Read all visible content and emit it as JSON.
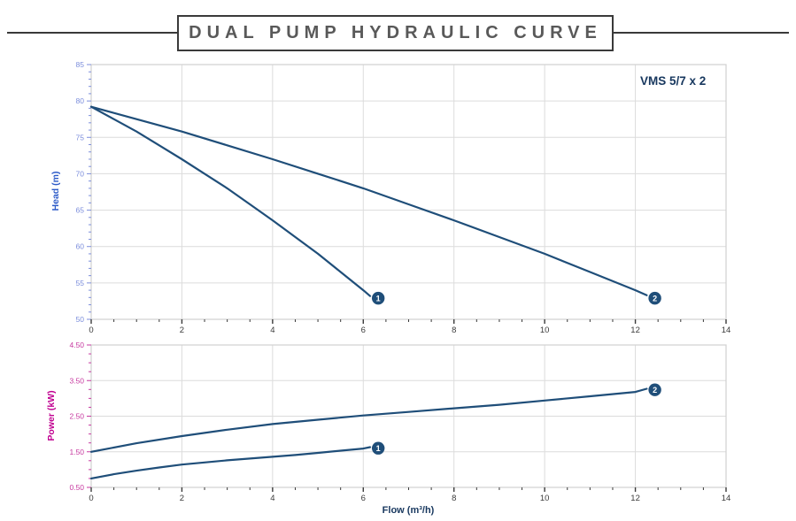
{
  "title": {
    "text": "DUAL PUMP HYDRAULIC CURVE"
  },
  "model_label": "VMS 5/7 x 2",
  "colors": {
    "curve": "#1f4e79",
    "badge": "#1f4e79",
    "badge_text": "#ffffff",
    "grid": "#dcdcdc",
    "plot_border": "#d0d0d0",
    "head_axis_title": "#2d5bc8",
    "head_tick": "#7c8edc",
    "power_axis_title": "#c00090",
    "power_tick": "#c73aa0",
    "x_tick": "#3a3a3a",
    "flow_axis_title": "#17375e",
    "model_label": "#17375e",
    "title_text": "#595959",
    "title_border": "#3a3a3a"
  },
  "chart_data": [
    {
      "type": "line",
      "title": "",
      "xlabel": "",
      "ylabel": "Head (m)",
      "xlim": [
        0,
        14
      ],
      "ylim": [
        50,
        85
      ],
      "x_major": 2,
      "x_minor": 0.5,
      "y_major": 5,
      "y_minor": 1,
      "grid": true,
      "legend": "badges at curve ends",
      "x_tick_labels": [
        "0",
        "2",
        "4",
        "6",
        "8",
        "10",
        "12",
        "14"
      ],
      "y_tick_labels": [
        "50",
        "55",
        "60",
        "65",
        "70",
        "75",
        "80",
        "85"
      ],
      "series": [
        {
          "name": "1",
          "points": [
            [
              0,
              79.2
            ],
            [
              0.5,
              77.5
            ],
            [
              1,
              75.8
            ],
            [
              1.5,
              73.9
            ],
            [
              2,
              72.0
            ],
            [
              2.5,
              70.0
            ],
            [
              3,
              68.0
            ],
            [
              3.5,
              65.8
            ],
            [
              4,
              63.6
            ],
            [
              4.5,
              61.3
            ],
            [
              5,
              59.0
            ],
            [
              5.5,
              56.5
            ],
            [
              6,
              54.0
            ],
            [
              6.15,
              53.2
            ]
          ],
          "badge": {
            "x": 6.33,
            "y": 52.9,
            "label": "1"
          }
        },
        {
          "name": "2",
          "points": [
            [
              0,
              79.2
            ],
            [
              1,
              77.5
            ],
            [
              2,
              75.8
            ],
            [
              3,
              73.9
            ],
            [
              4,
              72.0
            ],
            [
              5,
              70.0
            ],
            [
              6,
              68.0
            ],
            [
              7,
              65.8
            ],
            [
              8,
              63.6
            ],
            [
              9,
              61.3
            ],
            [
              10,
              59.0
            ],
            [
              11,
              56.5
            ],
            [
              12,
              54.0
            ],
            [
              12.25,
              53.3
            ]
          ],
          "badge": {
            "x": 12.43,
            "y": 52.9,
            "label": "2"
          }
        }
      ]
    },
    {
      "type": "line",
      "title": "",
      "xlabel": "Flow (m³/h)",
      "ylabel": "Power (kW)",
      "xlim": [
        0,
        14
      ],
      "ylim": [
        0.5,
        4.5
      ],
      "x_major": 2,
      "x_minor": 0.5,
      "y_major": 1,
      "y_minor": 0.25,
      "grid": true,
      "legend": "badges at curve ends",
      "x_tick_labels": [
        "0",
        "2",
        "4",
        "6",
        "8",
        "10",
        "12",
        "14"
      ],
      "y_tick_labels": [
        "0.50",
        "1.50",
        "2.50",
        "3.50",
        "4.50"
      ],
      "series": [
        {
          "name": "1",
          "points": [
            [
              0,
              0.75
            ],
            [
              0.5,
              0.87
            ],
            [
              1,
              0.97
            ],
            [
              1.5,
              1.06
            ],
            [
              2,
              1.14
            ],
            [
              2.5,
              1.2
            ],
            [
              3,
              1.26
            ],
            [
              3.5,
              1.31
            ],
            [
              4,
              1.36
            ],
            [
              4.5,
              1.41
            ],
            [
              5,
              1.47
            ],
            [
              5.5,
              1.53
            ],
            [
              6,
              1.59
            ],
            [
              6.15,
              1.63
            ]
          ],
          "badge": {
            "x": 6.33,
            "y": 1.6,
            "label": "1"
          }
        },
        {
          "name": "2",
          "points": [
            [
              0,
              1.5
            ],
            [
              1,
              1.74
            ],
            [
              2,
              1.94
            ],
            [
              3,
              2.12
            ],
            [
              4,
              2.28
            ],
            [
              5,
              2.4
            ],
            [
              6,
              2.52
            ],
            [
              7,
              2.62
            ],
            [
              8,
              2.72
            ],
            [
              9,
              2.82
            ],
            [
              10,
              2.94
            ],
            [
              11,
              3.06
            ],
            [
              12,
              3.18
            ],
            [
              12.25,
              3.27
            ]
          ],
          "badge": {
            "x": 12.43,
            "y": 3.24,
            "label": "2"
          }
        }
      ]
    }
  ]
}
